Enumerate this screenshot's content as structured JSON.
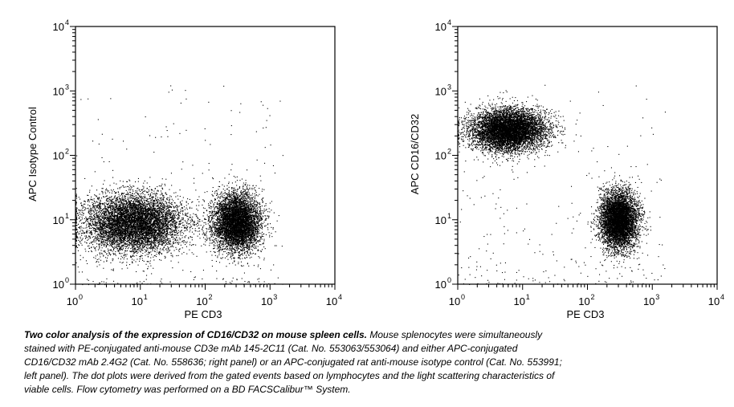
{
  "chart_data": [
    {
      "type": "scatter",
      "title": "",
      "xlabel": "PE CD3",
      "ylabel": "APC Isotype Control",
      "xscale": "log",
      "yscale": "log",
      "xlim": [
        1,
        10000
      ],
      "ylim": [
        1,
        10000
      ],
      "x_tick_labels": [
        "10",
        "10",
        "10",
        "10",
        "10"
      ],
      "x_tick_exponents": [
        "0",
        "1",
        "2",
        "3",
        "4"
      ],
      "y_tick_labels": [
        "10",
        "10",
        "10",
        "10",
        "10"
      ],
      "y_tick_exponents": [
        "0",
        "1",
        "2",
        "3",
        "4"
      ],
      "grid": false,
      "legend": "none",
      "point_color": "#000000",
      "populations": [
        {
          "label": "CD3-negative cluster",
          "center_x": 8,
          "center_y": 9,
          "spread_log_x": 0.38,
          "spread_log_y": 0.22,
          "relative_size": 0.55
        },
        {
          "label": "CD3-positive cluster",
          "center_x": 300,
          "center_y": 9,
          "spread_log_x": 0.18,
          "spread_log_y": 0.22,
          "relative_size": 0.45
        }
      ]
    },
    {
      "type": "scatter",
      "title": "",
      "xlabel": "PE CD3",
      "ylabel": "APC CD16/CD32",
      "xscale": "log",
      "yscale": "log",
      "xlim": [
        1,
        10000
      ],
      "ylim": [
        1,
        10000
      ],
      "x_tick_labels": [
        "10",
        "10",
        "10",
        "10",
        "10"
      ],
      "x_tick_exponents": [
        "0",
        "1",
        "2",
        "3",
        "4"
      ],
      "y_tick_labels": [
        "10",
        "10",
        "10",
        "10",
        "10"
      ],
      "y_tick_exponents": [
        "0",
        "1",
        "2",
        "3",
        "4"
      ],
      "grid": false,
      "legend": "none",
      "point_color": "#000000",
      "populations": [
        {
          "label": "CD16/CD32-positive, CD3-negative cluster",
          "center_x": 6,
          "center_y": 250,
          "spread_log_x": 0.28,
          "spread_log_y": 0.16,
          "relative_size": 0.55
        },
        {
          "label": "CD3-positive cluster",
          "center_x": 300,
          "center_y": 10,
          "spread_log_x": 0.14,
          "spread_log_y": 0.22,
          "relative_size": 0.45
        }
      ]
    }
  ],
  "caption": {
    "lead": "Two color analysis of the expression of CD16/CD32 on mouse spleen cells.",
    "line1": " Mouse splenocytes were simultaneously",
    "line2": "stained with PE-conjugated anti-mouse CD3e mAb 145-2C11 (Cat. No. 553063/553064) and either APC-conjugated",
    "line3": "CD16/CD32 mAb 2.4G2 (Cat. No. 558636; right panel) or an APC-conjugated  rat anti-mouse isotype control (Cat. No. 553991;",
    "line4": "left panel).  The dot plots were derived from the gated events based on lymphocytes and the light scattering characteristics of",
    "line5": "viable cells.  Flow cytometry was performed on a BD FACSCalibur™ System."
  }
}
